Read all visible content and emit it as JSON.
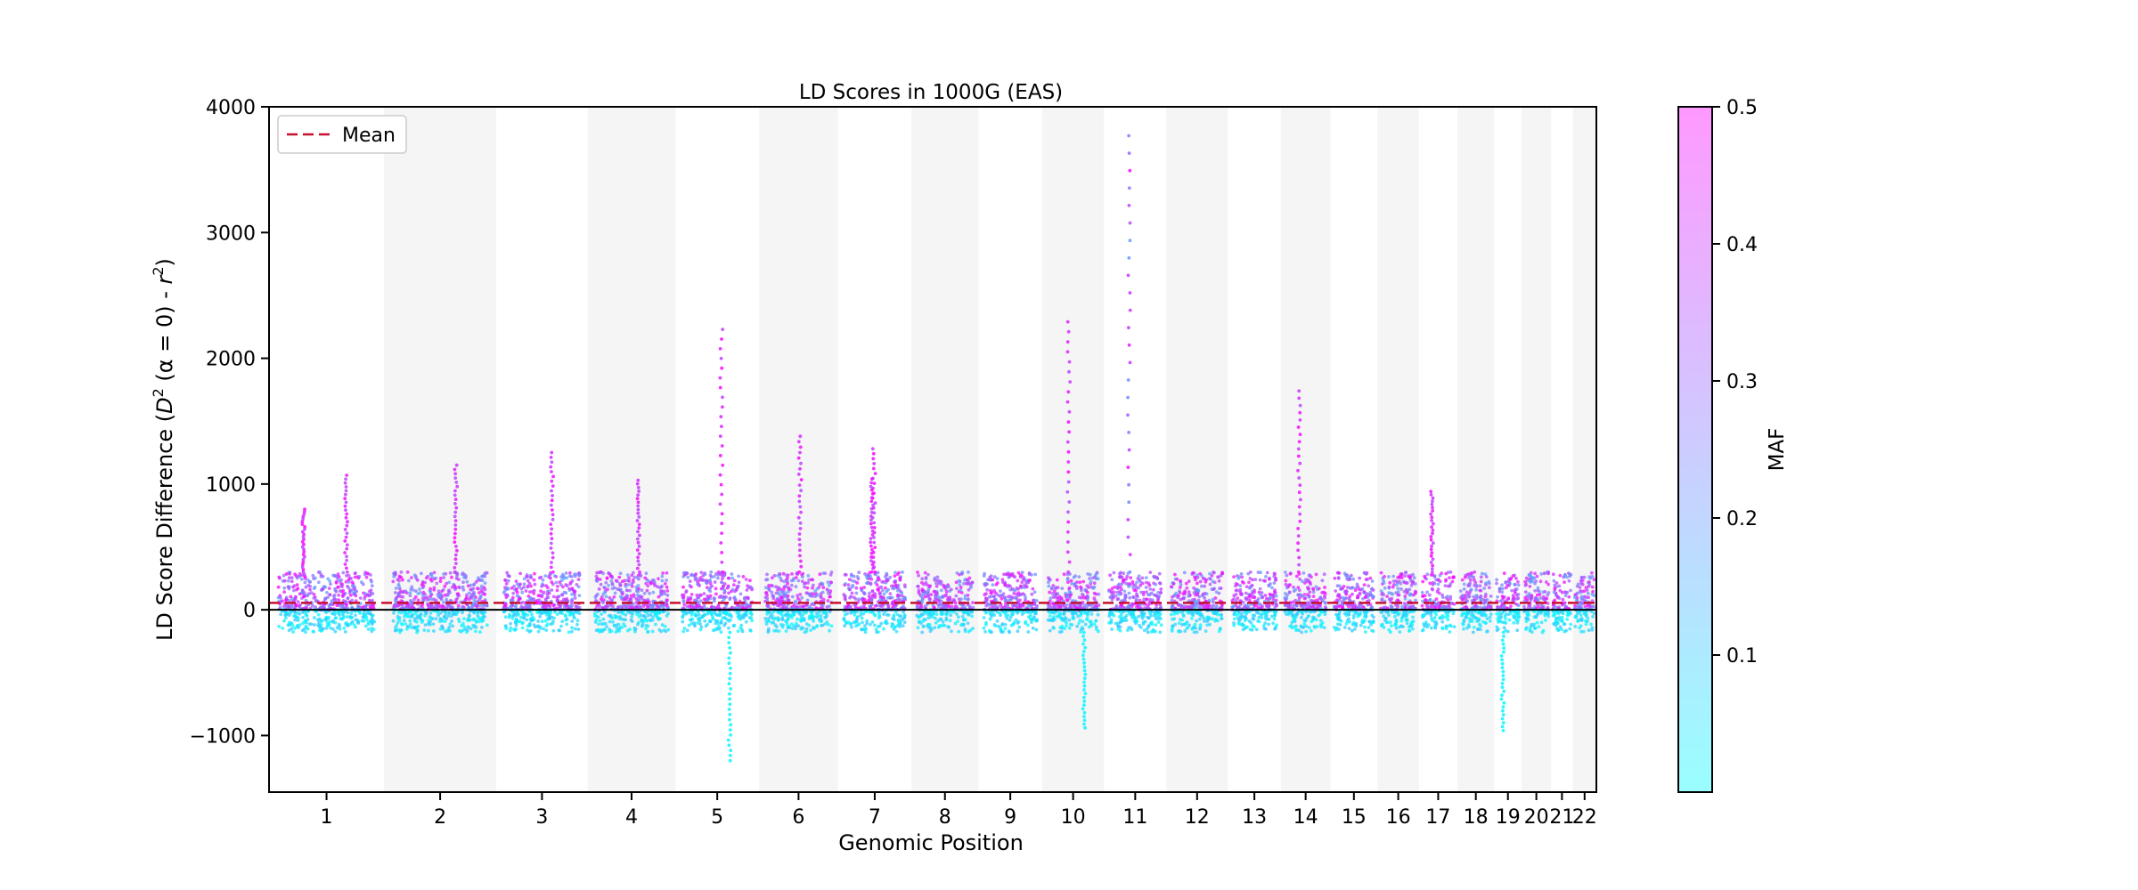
{
  "chart_data": {
    "type": "scatter",
    "title": "LD Scores in 1000G (EAS)",
    "xlabel": "Genomic Position",
    "ylabel": {
      "prefix": "LD Score Difference (",
      "d": "D",
      "d_sup": "2",
      "alpha_part": " (α = 0) - ",
      "r": "r",
      "r_sup": "2",
      "suffix": ")"
    },
    "ylim": [
      -1450,
      4000
    ],
    "yticks": [
      -1000,
      0,
      1000,
      2000,
      3000,
      4000
    ],
    "ytick_labels": [
      "−1000",
      "0",
      "1000",
      "2000",
      "3000",
      "4000"
    ],
    "x_axis": "chromosome",
    "chromosomes": [
      "1",
      "2",
      "3",
      "4",
      "5",
      "6",
      "7",
      "8",
      "9",
      "10",
      "11",
      "12",
      "13",
      "14",
      "15",
      "16",
      "17",
      "18",
      "19",
      "20",
      "21",
      "22"
    ],
    "alternate_band_shading": true,
    "band_color": "#f5f5f5",
    "mean_line": {
      "label": "Mean",
      "value": 55,
      "color": "#c8102e",
      "style": "dashed"
    },
    "zero_line": {
      "value": 0,
      "color": "#000000"
    },
    "legend": {
      "entries": [
        "Mean"
      ],
      "placement": "upper-left"
    },
    "colorbar": {
      "label": "MAF",
      "range": [
        0.0,
        0.5
      ],
      "ticks": [
        0.1,
        0.2,
        0.3,
        0.4,
        0.5
      ],
      "tick_labels": [
        "0.1",
        "0.2",
        "0.3",
        "0.4",
        "0.5"
      ],
      "color_low": "#00ffff",
      "color_high": "#ff00ff"
    },
    "points_summary": {
      "typical_positive_max": 300,
      "typical_negative_min": -180,
      "peaks": [
        {
          "chrom": "1",
          "value": 800
        },
        {
          "chrom": "1",
          "value": 1070
        },
        {
          "chrom": "2",
          "value": 1150
        },
        {
          "chrom": "3",
          "value": 1250
        },
        {
          "chrom": "4",
          "value": 1030
        },
        {
          "chrom": "5",
          "value": 2230
        },
        {
          "chrom": "6",
          "value": 1380
        },
        {
          "chrom": "7",
          "value": 1280
        },
        {
          "chrom": "7",
          "value": 1040
        },
        {
          "chrom": "10",
          "value": 2290
        },
        {
          "chrom": "11",
          "value": 3770
        },
        {
          "chrom": "14",
          "value": 1740
        },
        {
          "chrom": "17",
          "value": 940
        },
        {
          "chrom": "19",
          "value": -960
        },
        {
          "chrom": "10",
          "value": -940
        },
        {
          "chrom": "5",
          "value": -1200
        }
      ]
    }
  }
}
